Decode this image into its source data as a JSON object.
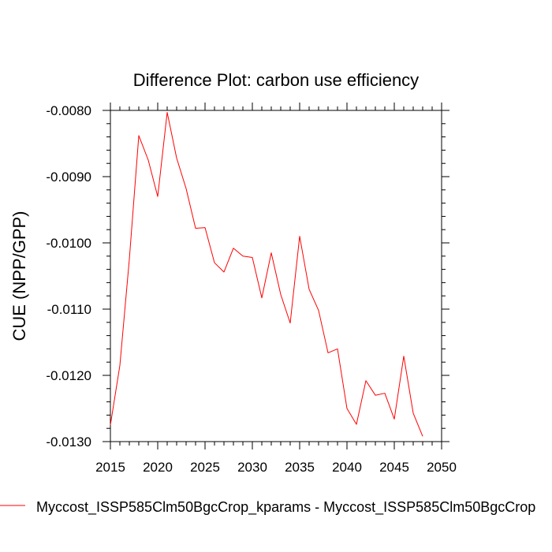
{
  "chart_data": {
    "type": "line",
    "title": "Difference Plot: carbon use efficiency",
    "xlabel": "",
    "ylabel": "CUE  (NPP/GPP)",
    "xlim": [
      2015,
      2050
    ],
    "ylim": [
      -0.013,
      -0.008
    ],
    "x_ticks": [
      2015,
      2020,
      2025,
      2030,
      2035,
      2040,
      2045,
      2050
    ],
    "x_tick_labels": [
      "2015",
      "2020",
      "2025",
      "2030",
      "2035",
      "2040",
      "2045",
      "2050"
    ],
    "y_ticks": [
      -0.008,
      -0.009,
      -0.01,
      -0.011,
      -0.012,
      -0.013
    ],
    "y_tick_labels": [
      "-0.0080",
      "-0.0090",
      "-0.0100",
      "-0.0110",
      "-0.0120",
      "-0.0130"
    ],
    "grid": false,
    "legend_position": "bottom",
    "series": [
      {
        "name": "Myccost_ISSP585Clm50BgcCrop_kparams - Myccost_ISSP585Clm50BgcCrop",
        "color": "#ff0000",
        "x": [
          2015,
          2016,
          2017,
          2018,
          2019,
          2020,
          2021,
          2022,
          2023,
          2024,
          2025,
          2026,
          2027,
          2028,
          2029,
          2030,
          2031,
          2032,
          2033,
          2034,
          2035,
          2036,
          2037,
          2038,
          2039,
          2040,
          2041,
          2042,
          2043,
          2044,
          2045,
          2046,
          2047,
          2048
        ],
        "values": [
          -0.01275,
          -0.01185,
          -0.01025,
          -0.00838,
          -0.00875,
          -0.0093,
          -0.00803,
          -0.00872,
          -0.00918,
          -0.00978,
          -0.00977,
          -0.0103,
          -0.01044,
          -0.01008,
          -0.0102,
          -0.01022,
          -0.01083,
          -0.01015,
          -0.01078,
          -0.01121,
          -0.0099,
          -0.0107,
          -0.01102,
          -0.01166,
          -0.0116,
          -0.0125,
          -0.01274,
          -0.01208,
          -0.0123,
          -0.01227,
          -0.01266,
          -0.01171,
          -0.01257,
          -0.01292
        ]
      }
    ]
  }
}
